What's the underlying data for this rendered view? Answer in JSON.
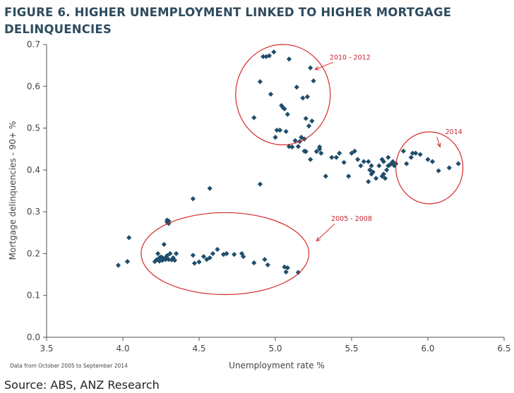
{
  "title": "FIGURE 6. HIGHER UNEMPLOYMENT LINKED TO HIGHER MORTGAGE DELINQUENCIES",
  "source": "Source: ABS, ANZ Research",
  "chart_data": {
    "type": "scatter",
    "title": "FIGURE 6. HIGHER UNEMPLOYMENT LINKED TO HIGHER MORTGAGE DELINQUENCIES",
    "xlabel": "Unemployment rate %",
    "ylabel": "Mortgage delinquencies - 90+ %",
    "note": "Data from October 2005 to September 2014",
    "xlim": [
      3.5,
      6.5
    ],
    "ylim": [
      0.0,
      0.7
    ],
    "xticks": [
      "3.5",
      "4.0",
      "4.5",
      "5.0",
      "5.5",
      "6.0",
      "6.5"
    ],
    "yticks": [
      "0.0",
      "0.1",
      "0.2",
      "0.3",
      "0.4",
      "0.5",
      "0.6",
      "0.7"
    ],
    "grid": false,
    "marker_color": "#1f4e6b",
    "annotation_color": "#d42a2a",
    "annotations": [
      {
        "label": "2010 - 2012",
        "cx": 5.05,
        "cy": 0.58,
        "rx": 0.31,
        "ry": 0.12,
        "text_x": 5.49,
        "text_y": 0.664,
        "arrow_to": [
          5.26,
          0.64
        ]
      },
      {
        "label": "2014",
        "cx": 6.01,
        "cy": 0.405,
        "rx": 0.22,
        "ry": 0.086,
        "text_x": 6.17,
        "text_y": 0.486,
        "arrow_to": [
          6.08,
          0.455
        ]
      },
      {
        "label": "2005 - 2008",
        "cx": 4.67,
        "cy": 0.2,
        "rx": 0.55,
        "ry": 0.098,
        "text_x": 5.5,
        "text_y": 0.278,
        "arrow_to": [
          5.27,
          0.23
        ]
      }
    ],
    "x": [
      3.97,
      4.03,
      4.04,
      4.21,
      4.22,
      4.23,
      4.24,
      4.25,
      4.26,
      4.27,
      4.28,
      4.29,
      4.3,
      4.31,
      4.32,
      4.33,
      4.34,
      4.35,
      4.3,
      4.29,
      4.28,
      4.24,
      4.26,
      4.46,
      4.47,
      4.5,
      4.53,
      4.55,
      4.57,
      4.59,
      4.62,
      4.66,
      4.68,
      4.73,
      4.78,
      4.79,
      4.86,
      4.93,
      4.95,
      5.06,
      5.07,
      5.08,
      5.15,
      4.03,
      4.29,
      4.3,
      4.46,
      4.57,
      4.9,
      4.86,
      4.9,
      4.92,
      4.94,
      4.96,
      4.97,
      4.99,
      5.0,
      5.03,
      5.04,
      5.06,
      5.07,
      5.08,
      5.09,
      5.11,
      5.14,
      5.16,
      5.18,
      5.19,
      5.2,
      5.21,
      5.23,
      5.24,
      5.25,
      5.01,
      5.05,
      5.09,
      5.15,
      5.17,
      5.22,
      5.2,
      5.13,
      5.19,
      5.23,
      5.27,
      5.29,
      5.3,
      5.33,
      5.37,
      5.4,
      5.42,
      5.45,
      5.48,
      5.5,
      5.52,
      5.54,
      5.56,
      5.58,
      5.61,
      5.62,
      5.63,
      5.64,
      5.66,
      5.68,
      5.7,
      5.71,
      5.72,
      5.73,
      5.74,
      5.75,
      5.76,
      5.77,
      5.78,
      5.79,
      5.71,
      5.61,
      5.63,
      5.62,
      5.7,
      5.29,
      5.74,
      5.84,
      5.86,
      5.89,
      5.9,
      5.92,
      5.95,
      6.0,
      6.03,
      6.07,
      6.14,
      6.2
    ],
    "y": [
      0.172,
      0.181,
      0.238,
      0.181,
      0.185,
      0.2,
      0.19,
      0.192,
      0.184,
      0.222,
      0.186,
      0.195,
      0.186,
      0.2,
      0.185,
      0.19,
      0.184,
      0.2,
      0.278,
      0.28,
      0.19,
      0.182,
      0.19,
      0.196,
      0.177,
      0.18,
      0.193,
      0.186,
      0.19,
      0.2,
      0.21,
      0.198,
      0.2,
      0.198,
      0.2,
      0.193,
      0.178,
      0.186,
      0.173,
      0.168,
      0.156,
      0.166,
      0.155,
      0.181,
      0.275,
      0.272,
      0.331,
      0.356,
      0.366,
      0.525,
      0.611,
      0.671,
      0.671,
      0.673,
      0.581,
      0.682,
      0.478,
      0.495,
      0.554,
      0.546,
      0.492,
      0.533,
      0.665,
      0.455,
      0.598,
      0.468,
      0.572,
      0.474,
      0.523,
      0.575,
      0.644,
      0.517,
      0.613,
      0.495,
      0.549,
      0.456,
      0.456,
      0.478,
      0.505,
      0.444,
      0.47,
      0.445,
      0.425,
      0.444,
      0.455,
      0.44,
      0.385,
      0.43,
      0.43,
      0.44,
      0.418,
      0.385,
      0.44,
      0.445,
      0.425,
      0.41,
      0.42,
      0.372,
      0.4,
      0.39,
      0.395,
      0.38,
      0.41,
      0.425,
      0.39,
      0.38,
      0.4,
      0.41,
      0.412,
      0.415,
      0.42,
      0.41,
      0.415,
      0.42,
      0.42,
      0.41,
      0.4,
      0.385,
      0.45,
      0.43,
      0.445,
      0.415,
      0.43,
      0.44,
      0.44,
      0.437,
      0.425,
      0.42,
      0.398,
      0.405,
      0.415
    ]
  }
}
